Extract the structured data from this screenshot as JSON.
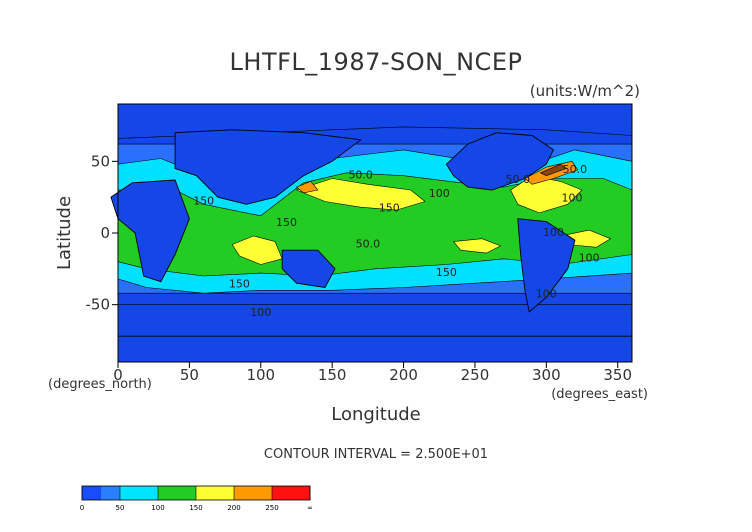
{
  "chart_data": {
    "type": "heatmap",
    "title": "LHTFL_1987-SON_NCEP",
    "units": "(units:W/m^2)",
    "xlabel": "Longitude",
    "ylabel": "Latitude",
    "x_unit_label": "(degrees_east)",
    "y_unit_label": "(degrees_north)",
    "xlim": [
      0,
      360
    ],
    "ylim": [
      -90,
      90
    ],
    "x_ticks": [
      0,
      50,
      100,
      150,
      200,
      250,
      300,
      350
    ],
    "y_ticks": [
      -50,
      0,
      50
    ],
    "contour_interval_text": "CONTOUR INTERVAL = 2.500E+01",
    "contour_labels": [
      "50.0",
      "100",
      "150",
      "100",
      "100",
      "150",
      "150",
      "100",
      "100",
      "50.0",
      "50.0",
      "50.0",
      "150",
      "150",
      "100"
    ],
    "colorbar": {
      "levels": [
        "0",
        "50",
        "100",
        "150",
        "200",
        "250",
        "∞"
      ],
      "colors": [
        "#1a4cff",
        "#00e5ff",
        "#22cc22",
        "#ffff33",
        "#ff9900",
        "#ff1111"
      ],
      "bands": [
        {
          "from": 0,
          "to": 25,
          "color": "#1a4cff"
        },
        {
          "from": 25,
          "to": 50,
          "color": "#2a7fff"
        },
        {
          "from": 50,
          "to": 75,
          "color": "#00e5ff"
        },
        {
          "from": 75,
          "to": 100,
          "color": "#00e5ff"
        },
        {
          "from": 100,
          "to": 125,
          "color": "#22cc22"
        },
        {
          "from": 125,
          "to": 150,
          "color": "#22cc22"
        },
        {
          "from": 150,
          "to": 175,
          "color": "#ffff33"
        },
        {
          "from": 175,
          "to": 200,
          "color": "#ffff33"
        },
        {
          "from": 200,
          "to": 225,
          "color": "#ff9900"
        },
        {
          "from": 225,
          "to": 250,
          "color": "#ff9900"
        },
        {
          "from": 250,
          "to": 275,
          "color": "#ff1111"
        },
        {
          "from": 275,
          "to": 300,
          "color": "#ff1111"
        }
      ]
    },
    "fill_colors": {
      "deep": "#1446e8",
      "low": "#2a70ff",
      "cyan": "#00e0ff",
      "green": "#22cc22",
      "yellow": "#ffff33",
      "orange": "#ff9900",
      "brown": "#8b4513"
    }
  }
}
